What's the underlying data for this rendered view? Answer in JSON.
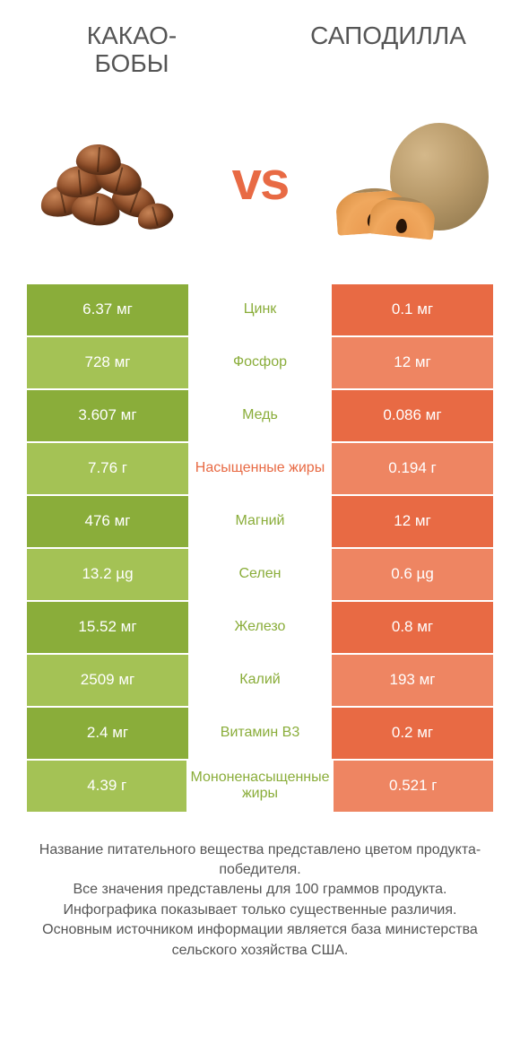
{
  "titles": {
    "left": "КАКАО-\nБОБЫ",
    "right": "САПОДИЛЛА"
  },
  "vs": "vs",
  "colors": {
    "left_dark": "#8aad3a",
    "left_light": "#a4c255",
    "left_text": "#8aad3a",
    "right_dark": "#e86a44",
    "right_light": "#ee8562",
    "right_text": "#e86a44",
    "white": "#ffffff"
  },
  "rows": [
    {
      "left": "6.37 мг",
      "mid": "Цинк",
      "right": "0.1 мг",
      "winner": "left"
    },
    {
      "left": "728 мг",
      "mid": "Фосфор",
      "right": "12 мг",
      "winner": "left"
    },
    {
      "left": "3.607 мг",
      "mid": "Медь",
      "right": "0.086 мг",
      "winner": "left"
    },
    {
      "left": "7.76 г",
      "mid": "Насыщенные жиры",
      "right": "0.194 г",
      "winner": "right"
    },
    {
      "left": "476 мг",
      "mid": "Магний",
      "right": "12 мг",
      "winner": "left"
    },
    {
      "left": "13.2 µg",
      "mid": "Селен",
      "right": "0.6 µg",
      "winner": "left"
    },
    {
      "left": "15.52 мг",
      "mid": "Железо",
      "right": "0.8 мг",
      "winner": "left"
    },
    {
      "left": "2509 мг",
      "mid": "Калий",
      "right": "193 мг",
      "winner": "left"
    },
    {
      "left": "2.4 мг",
      "mid": "Витамин B3",
      "right": "0.2 мг",
      "winner": "left"
    },
    {
      "left": "4.39 г",
      "mid": "Мононенасыщенные жиры",
      "right": "0.521 г",
      "winner": "left"
    }
  ],
  "footer": "Название питательного вещества представлено цветом продукта-победителя.\nВсе значения представлены для 100 граммов продукта.\nИнфографика показывает только существенные различия.\nОсновным источником информации является база министерства сельского хозяйства США."
}
